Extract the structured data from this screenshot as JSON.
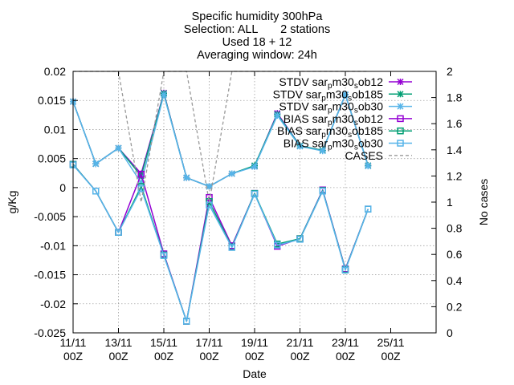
{
  "chart_data": {
    "type": "line",
    "title": [
      "Specific humidity 300hPa",
      "Selection: ALL       2 stations",
      "Used 18 + 12",
      "Averaging window: 24h"
    ],
    "xlabel": "Date",
    "ylabel": "g/Kg",
    "y2label": "No cases",
    "xlim": [
      0,
      16
    ],
    "ylim": [
      -0.025,
      0.02
    ],
    "y2lim": [
      0,
      2
    ],
    "x_ticks": [
      {
        "x": 0,
        "label": [
          "11/11",
          "00Z"
        ]
      },
      {
        "x": 2,
        "label": [
          "13/11",
          "00Z"
        ]
      },
      {
        "x": 4,
        "label": [
          "15/11",
          "00Z"
        ]
      },
      {
        "x": 6,
        "label": [
          "17/11",
          "00Z"
        ]
      },
      {
        "x": 8,
        "label": [
          "19/11",
          "00Z"
        ]
      },
      {
        "x": 10,
        "label": [
          "21/11",
          "00Z"
        ]
      },
      {
        "x": 12,
        "label": [
          "23/11",
          "00Z"
        ]
      },
      {
        "x": 14,
        "label": [
          "25/11",
          "00Z"
        ]
      }
    ],
    "y_ticks": [
      "0.02",
      "0.015",
      "0.01",
      "0.005",
      "0",
      "-0.005",
      "-0.01",
      "-0.015",
      "-0.02",
      "-0.025"
    ],
    "y2_ticks": [
      "2",
      "1.8",
      "1.6",
      "1.4",
      "1.2",
      "1",
      "0.8",
      "0.6",
      "0.4",
      "0.2",
      "0"
    ],
    "grid": true,
    "legend_position": "top-right",
    "series": [
      {
        "name_parts": [
          "STDV sar",
          "p",
          "m30",
          "s",
          "ob12"
        ],
        "color": "#9400d3",
        "marker": "x",
        "axis": "y1",
        "x": [
          0,
          1,
          2,
          3,
          4,
          5,
          6,
          7,
          8,
          9,
          10,
          11,
          12,
          13
        ],
        "y": [
          0.0148,
          0.0041,
          0.0068,
          0.0024,
          0.0163,
          0.0017,
          0.0002,
          0.0024,
          0.0037,
          0.0128,
          0.0072,
          0.0064,
          0.016,
          0.0038
        ]
      },
      {
        "name_parts": [
          "STDV sar",
          "p",
          "m30",
          "s",
          "ob185"
        ],
        "color": "#009e73",
        "marker": "x",
        "axis": "y1",
        "x": [
          0,
          1,
          2,
          3,
          4,
          5,
          6,
          7,
          8,
          9,
          10,
          11,
          12,
          13
        ],
        "y": [
          0.0148,
          0.0041,
          0.0068,
          0.002,
          0.0162,
          0.0017,
          0.0002,
          0.0024,
          0.0038,
          0.0126,
          0.0072,
          0.0064,
          0.016,
          0.0038
        ]
      },
      {
        "name_parts": [
          "STDV sar",
          "p",
          "m30",
          "s",
          "ob30"
        ],
        "color": "#56b4e9",
        "marker": "x",
        "axis": "y1",
        "x": [
          0,
          1,
          2,
          3,
          4,
          5,
          6,
          7,
          8,
          9,
          10,
          11,
          12,
          13
        ],
        "y": [
          0.0148,
          0.0041,
          0.0068,
          0.0008,
          0.016,
          0.0017,
          0.0002,
          0.0024,
          0.0036,
          0.0124,
          0.0071,
          0.0063,
          0.016,
          0.0037
        ]
      },
      {
        "name_parts": [
          "BIAS sar",
          "p",
          "m30",
          "s",
          "ob12"
        ],
        "color": "#9400d3",
        "marker": "square",
        "axis": "y1",
        "x": [
          0,
          1,
          2,
          3,
          4,
          5,
          6,
          7,
          8,
          9,
          10,
          11,
          12,
          13
        ],
        "y": [
          0.004,
          -0.0006,
          -0.0077,
          0.0023,
          -0.0114,
          -0.023,
          -0.0017,
          -0.01,
          -0.001,
          -0.0101,
          -0.0088,
          -0.0004,
          -0.014,
          -0.0037
        ]
      },
      {
        "name_parts": [
          "BIAS sar",
          "p",
          "m30",
          "s",
          "ob185"
        ],
        "color": "#009e73",
        "marker": "square",
        "axis": "y1",
        "x": [
          0,
          1,
          2,
          3,
          4,
          5,
          6,
          7,
          8,
          9,
          10,
          11,
          12,
          13
        ],
        "y": [
          0.004,
          -0.0006,
          -0.0077,
          0.0002,
          -0.0116,
          -0.023,
          -0.0024,
          -0.0102,
          -0.001,
          -0.0097,
          -0.0088,
          -0.0005,
          -0.0141,
          -0.0037
        ]
      },
      {
        "name_parts": [
          "BIAS sar",
          "p",
          "m30",
          "s",
          "ob30"
        ],
        "color": "#56b4e9",
        "marker": "square",
        "axis": "y1",
        "x": [
          0,
          1,
          2,
          3,
          4,
          5,
          6,
          7,
          8,
          9,
          10,
          11,
          12,
          13
        ],
        "y": [
          0.0039,
          -0.0006,
          -0.0077,
          -0.0002,
          -0.0117,
          -0.023,
          -0.003,
          -0.0103,
          -0.0011,
          -0.0099,
          -0.0089,
          -0.0006,
          -0.0142,
          -0.0037
        ]
      },
      {
        "name_parts": [
          "CASES"
        ],
        "color": "#999999",
        "marker": "none",
        "dashed": true,
        "axis": "y2",
        "x": [
          0,
          1,
          2,
          3,
          4,
          5,
          6,
          7,
          8,
          9,
          10,
          11,
          12,
          13
        ],
        "y": [
          2,
          2,
          2,
          1,
          2,
          2,
          1,
          2,
          2,
          2,
          2,
          2,
          2,
          2
        ]
      }
    ]
  }
}
